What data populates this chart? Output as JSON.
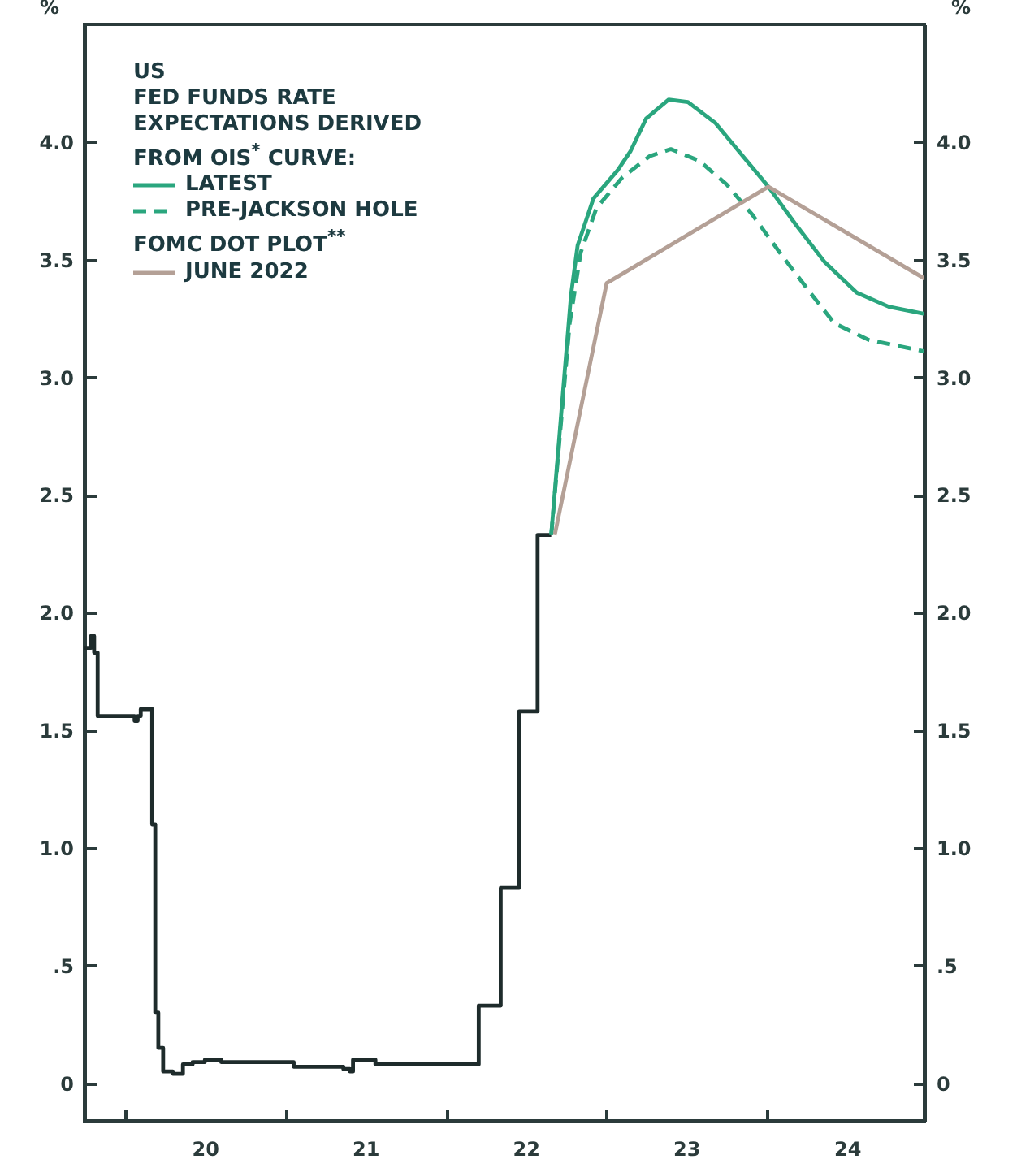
{
  "chart_data": {
    "type": "line",
    "ylabel": "%",
    "y2label": "%",
    "legend_title": "US\nFED FUNDS RATE\nEXPECTATIONS DERIVED\nFROM OIS$^{*}$ CURVE:",
    "legend": "top left",
    "annotations": [
      "FOMC DOT PLOT$^{**}$"
    ],
    "xlim": [
      "2019-10-01",
      "2024-12-24"
    ],
    "xticks": [
      {
        "value": "2020-01-01",
        "label": null
      },
      {
        "value": "2021-01-01",
        "label": null
      },
      {
        "value": "2022-01-01",
        "label": null
      },
      {
        "value": "2023-01-01",
        "label": null
      },
      {
        "value": "2024-01-01",
        "label": null
      },
      {
        "value": "2020-07-01",
        "label": "20"
      },
      {
        "value": "2021-07-01",
        "label": "21"
      },
      {
        "value": "2022-07-01",
        "label": "22"
      },
      {
        "value": "2023-07-01",
        "label": "23"
      },
      {
        "value": "2024-07-01",
        "label": "24"
      }
    ],
    "ylim": [
      -0.16,
      4.5
    ],
    "yticks": [
      {
        "value": 0,
        "label": "0"
      },
      {
        "value": 0.5,
        "label": ".5"
      },
      {
        "value": 1,
        "label": "1.0"
      },
      {
        "value": 1.5,
        "label": "1.5"
      },
      {
        "value": 2,
        "label": "2.0"
      },
      {
        "value": 2.5,
        "label": "2.5"
      },
      {
        "value": 3,
        "label": "3.0"
      },
      {
        "value": 3.5,
        "label": "3.5"
      },
      {
        "value": 4,
        "label": "4.0"
      }
    ],
    "y2lim": [
      -0.16,
      4.5
    ],
    "y2ticks": [
      {
        "value": 0,
        "label": "0"
      },
      {
        "value": 0.5,
        "label": ".5"
      },
      {
        "value": 1,
        "label": "1.0"
      },
      {
        "value": 1.5,
        "label": "1.5"
      },
      {
        "value": 2,
        "label": "2.0"
      },
      {
        "value": 2.5,
        "label": "2.5"
      },
      {
        "value": 3,
        "label": "3.0"
      },
      {
        "value": 3.5,
        "label": "3.5"
      },
      {
        "value": 4,
        "label": "4.0"
      }
    ],
    "series": [
      {
        "type": "step",
        "color": "#1e2b2b",
        "x": [
          "2019-10-01",
          "2019-10-16",
          "2019-10-23",
          "2019-10-31",
          "2020-01-23",
          "2020-01-30",
          "2020-02-06",
          "2020-03-03",
          "2020-03-10",
          "2020-03-17",
          "2020-03-28",
          "2020-04-19",
          "2020-05-12",
          "2020-06-03",
          "2020-07-01",
          "2020-08-07",
          "2020-11-25",
          "2021-01-19",
          "2021-03-14",
          "2021-05-12",
          "2021-05-27",
          "2021-06-03",
          "2021-07-09",
          "2021-07-24",
          "2022-03-16",
          "2022-05-05",
          "2022-06-16",
          "2022-07-28",
          "2022-08-28"
        ],
        "values": [
          1.85,
          1.9,
          1.83,
          1.56,
          1.54,
          1.56,
          1.59,
          1.1,
          0.3,
          0.15,
          0.05,
          0.04,
          0.08,
          0.09,
          0.1,
          0.09,
          0.09,
          0.07,
          0.07,
          0.06,
          0.05,
          0.1,
          0.1,
          0.08,
          0.33,
          0.83,
          1.58,
          2.33,
          2.33
        ]
      },
      {
        "name": "LATEST",
        "type": "line",
        "color": "#2aa67e",
        "line_style": "solid",
        "x": [
          "2022-08-28",
          "2022-10-12",
          "2022-10-27",
          "2022-12-02",
          "2023-01-26",
          "2023-02-24",
          "2023-04-01",
          "2023-05-22",
          "2023-07-05",
          "2023-09-06",
          "2023-11-07",
          "2024-01-04",
          "2024-03-06",
          "2024-05-11",
          "2024-07-23",
          "2024-10-04",
          "2024-12-24"
        ],
        "values": [
          2.33,
          3.35,
          3.56,
          3.76,
          3.88,
          3.96,
          4.1,
          4.18,
          4.17,
          4.08,
          3.94,
          3.81,
          3.65,
          3.49,
          3.36,
          3.3,
          3.27
        ]
      },
      {
        "name": "PRE-JACKSON HOLE",
        "type": "line",
        "color": "#2aa67e",
        "line_style": "dashed",
        "x": [
          "2022-08-28",
          "2022-10-09",
          "2022-11-03",
          "2022-12-09",
          "2023-02-06",
          "2023-04-09",
          "2023-05-27",
          "2023-07-31",
          "2023-10-01",
          "2023-11-29",
          "2024-01-30",
          "2024-04-04",
          "2024-06-02",
          "2024-08-18",
          "2024-12-24"
        ],
        "values": [
          2.33,
          3.23,
          3.53,
          3.72,
          3.85,
          3.94,
          3.97,
          3.92,
          3.82,
          3.69,
          3.53,
          3.37,
          3.23,
          3.16,
          3.11
        ]
      },
      {
        "name": "JUNE 2022",
        "type": "line",
        "color": "#b4a096",
        "line_style": "solid",
        "x": [
          "2022-09-05",
          "2023-01-01",
          "2024-01-04",
          "2024-12-24"
        ],
        "values": [
          2.33,
          3.4,
          3.81,
          3.42
        ]
      }
    ]
  }
}
